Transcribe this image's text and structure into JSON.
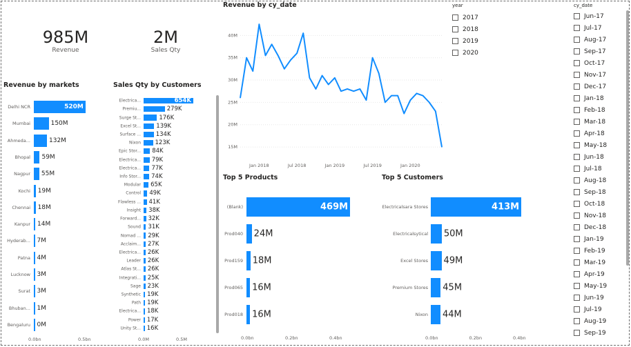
{
  "kpis": {
    "revenue": {
      "value": "985M",
      "label": "Revenue"
    },
    "sales_qty": {
      "value": "2M",
      "label": "Sales Qty"
    }
  },
  "revenue_by_markets": {
    "title": "Revenue by markets",
    "items": [
      {
        "label": "Delhi NCR",
        "value": 520,
        "text": "520M"
      },
      {
        "label": "Mumbai",
        "value": 150,
        "text": "150M"
      },
      {
        "label": "Ahmeda...",
        "value": 132,
        "text": "132M"
      },
      {
        "label": "Bhopal",
        "value": 59,
        "text": "59M"
      },
      {
        "label": "Nagpur",
        "value": 55,
        "text": "55M"
      },
      {
        "label": "Kochi",
        "value": 19,
        "text": "19M"
      },
      {
        "label": "Chennai",
        "value": 18,
        "text": "18M"
      },
      {
        "label": "Kanpur",
        "value": 14,
        "text": "14M"
      },
      {
        "label": "Hyderab...",
        "value": 7,
        "text": "7M"
      },
      {
        "label": "Patna",
        "value": 4,
        "text": "4M"
      },
      {
        "label": "Lucknow",
        "value": 3,
        "text": "3M"
      },
      {
        "label": "Surat",
        "value": 3,
        "text": "3M"
      },
      {
        "label": "Bhuban...",
        "value": 1,
        "text": "1M"
      },
      {
        "label": "Bengaluru",
        "value": 0,
        "text": "0M"
      }
    ],
    "axis": [
      "0.0bn",
      "0.5bn"
    ],
    "max": 500
  },
  "sales_by_customers": {
    "title": "Sales Qty by Customers",
    "items": [
      {
        "label": "Electrica...",
        "value": 654,
        "text": "654K"
      },
      {
        "label": "Premiu...",
        "value": 279,
        "text": "279K"
      },
      {
        "label": "Surge St...",
        "value": 176,
        "text": "176K"
      },
      {
        "label": "Excel St...",
        "value": 139,
        "text": "139K"
      },
      {
        "label": "Surface ...",
        "value": 134,
        "text": "134K"
      },
      {
        "label": "Nixon",
        "value": 123,
        "text": "123K"
      },
      {
        "label": "Epic Stor...",
        "value": 84,
        "text": "84K"
      },
      {
        "label": "Electrica...",
        "value": 79,
        "text": "79K"
      },
      {
        "label": "Electrica...",
        "value": 77,
        "text": "77K"
      },
      {
        "label": "Info Stor...",
        "value": 74,
        "text": "74K"
      },
      {
        "label": "Modular",
        "value": 65,
        "text": "65K"
      },
      {
        "label": "Control",
        "value": 49,
        "text": "49K"
      },
      {
        "label": "Flawless ...",
        "value": 41,
        "text": "41K"
      },
      {
        "label": "Insight",
        "value": 38,
        "text": "38K"
      },
      {
        "label": "Forward...",
        "value": 32,
        "text": "32K"
      },
      {
        "label": "Sound",
        "value": 31,
        "text": "31K"
      },
      {
        "label": "Nomad ...",
        "value": 29,
        "text": "29K"
      },
      {
        "label": "Acclaim...",
        "value": 27,
        "text": "27K"
      },
      {
        "label": "Electrica...",
        "value": 26,
        "text": "26K"
      },
      {
        "label": "Leader",
        "value": 26,
        "text": "26K"
      },
      {
        "label": "Atlas St...",
        "value": 26,
        "text": "26K"
      },
      {
        "label": "Integrati...",
        "value": 25,
        "text": "25K"
      },
      {
        "label": "Sage",
        "value": 23,
        "text": "23K"
      },
      {
        "label": "Synthetic",
        "value": 19,
        "text": "19K"
      },
      {
        "label": "Path",
        "value": 19,
        "text": "19K"
      },
      {
        "label": "Electrica...",
        "value": 18,
        "text": "18K"
      },
      {
        "label": "Power",
        "value": 17,
        "text": "17K"
      },
      {
        "label": "Unity St...",
        "value": 16,
        "text": "16K"
      }
    ],
    "axis": [
      "0.0M",
      "0.5M"
    ],
    "max": 500
  },
  "chart_data": {
    "type": "line",
    "title": "Revenue by cy_date",
    "x": [
      "2017-10",
      "2017-11",
      "2017-12",
      "2018-01",
      "2018-02",
      "2018-03",
      "2018-04",
      "2018-05",
      "2018-06",
      "2018-07",
      "2018-08",
      "2018-09",
      "2018-10",
      "2018-11",
      "2018-12",
      "2019-01",
      "2019-02",
      "2019-03",
      "2019-04",
      "2019-05",
      "2019-06",
      "2019-07",
      "2019-08",
      "2019-09",
      "2019-10",
      "2019-11",
      "2019-12",
      "2020-01",
      "2020-02",
      "2020-03",
      "2020-04",
      "2020-05",
      "2020-06"
    ],
    "y": [
      26,
      35,
      32,
      42.5,
      35.5,
      38,
      35.5,
      32.5,
      34.5,
      36,
      40.5,
      30.5,
      28,
      31,
      29,
      30.5,
      27.5,
      28,
      27.5,
      28,
      25.5,
      35,
      31.5,
      25,
      26.5,
      26.5,
      22.5,
      25.5,
      27,
      26.5,
      25,
      23,
      15
    ],
    "yticks": [
      "15M",
      "20M",
      "25M",
      "30M",
      "35M",
      "40M"
    ],
    "xticks": [
      "Jan 2018",
      "Jul 2018",
      "Jan 2019",
      "Jul 2019",
      "Jan 2020"
    ],
    "ylim": [
      13,
      45
    ],
    "color": "#118dff"
  },
  "top_products": {
    "title": "Top 5 Products",
    "items": [
      {
        "label": "(Blank)",
        "value": 469,
        "text": "469M"
      },
      {
        "label": "Prod040",
        "value": 24,
        "text": "24M"
      },
      {
        "label": "Prod159",
        "value": 18,
        "text": "18M"
      },
      {
        "label": "Prod065",
        "value": 16,
        "text": "16M"
      },
      {
        "label": "Prod018",
        "value": 16,
        "text": "16M"
      }
    ],
    "axis": [
      "0.0bn",
      "0.2bn",
      "0.4bn"
    ],
    "max": 400
  },
  "top_customers": {
    "title": "Top 5 Customers",
    "items": [
      {
        "label": "Electricalsara Stores",
        "value": 413,
        "text": "413M"
      },
      {
        "label": "Electricalsytical",
        "value": 50,
        "text": "50M"
      },
      {
        "label": "Excel Stores",
        "value": 49,
        "text": "49M"
      },
      {
        "label": "Premium Stores",
        "value": 45,
        "text": "45M"
      },
      {
        "label": "Nixon",
        "value": 44,
        "text": "44M"
      }
    ],
    "axis": [
      "0.0bn",
      "0.2bn",
      "0.4bn"
    ],
    "max": 400
  },
  "year_slicer": {
    "title": "year",
    "items": [
      "2017",
      "2018",
      "2019",
      "2020"
    ]
  },
  "date_slicer": {
    "title": "cy_date",
    "items": [
      "Jun-17",
      "Jul-17",
      "Aug-17",
      "Sep-17",
      "Oct-17",
      "Nov-17",
      "Dec-17",
      "Jan-18",
      "Feb-18",
      "Mar-18",
      "Apr-18",
      "May-18",
      "Jun-18",
      "Jul-18",
      "Aug-18",
      "Sep-18",
      "Oct-18",
      "Nov-18",
      "Dec-18",
      "Jan-19",
      "Feb-19",
      "Mar-19",
      "Apr-19",
      "May-19",
      "Jun-19",
      "Jul-19",
      "Aug-19",
      "Sep-19"
    ]
  },
  "colors": {
    "accent": "#118dff"
  }
}
